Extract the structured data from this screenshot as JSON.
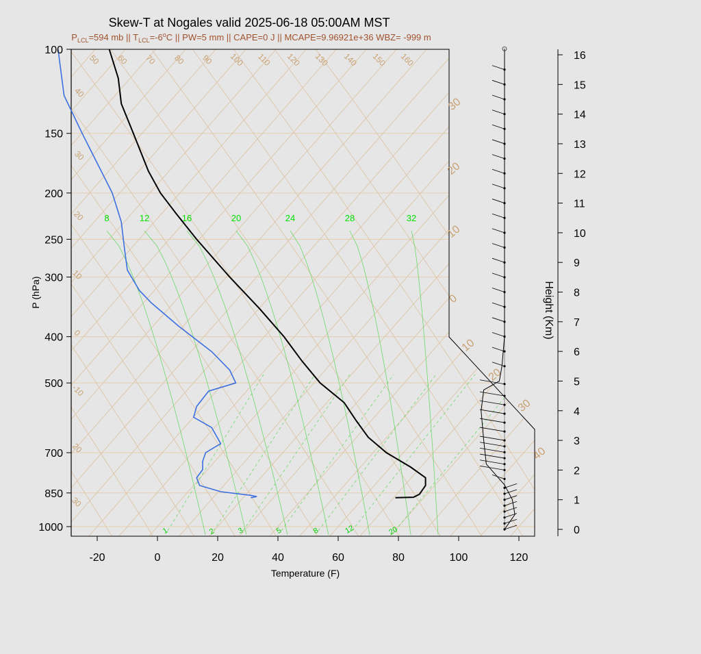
{
  "chart_data": {
    "type": "skew-t",
    "title": "Skew-T at Nogales valid 2025-06-18 05:00AM MST",
    "subtitle": {
      "lcl_p_prefix": "P",
      "lcl_p_sub": "LCL",
      "lcl_p_value": "=594 mb || T",
      "lcl_t_sub": "LCL",
      "lcl_t_value": "=-6",
      "deg": "o",
      "rest": "C || PW=5 mm || CAPE=0 J || MCAPE=9.96921e+36 WBZ= -999 m"
    },
    "xlabel": "Temperature (F)",
    "ylabel": "P (hPa)",
    "y2label": "Height (Km)",
    "x_ticks": [
      "-20",
      "0",
      "20",
      "40",
      "60",
      "80",
      "100",
      "120"
    ],
    "p_ticks": [
      "100",
      "150",
      "200",
      "250",
      "300",
      "400",
      "500",
      "700",
      "850",
      "1000"
    ],
    "height_ticks": [
      "0",
      "1",
      "2",
      "3",
      "4",
      "5",
      "6",
      "7",
      "8",
      "9",
      "10",
      "11",
      "12",
      "13",
      "14",
      "15",
      "16"
    ],
    "isotherm_labels_top": [
      "50",
      "60",
      "70",
      "80",
      "90",
      "100",
      "110",
      "120",
      "130",
      "140",
      "150",
      "160"
    ],
    "isotherm_labels_left": [
      "40",
      "30",
      "20",
      "10",
      "0",
      "-10",
      "20",
      "30"
    ],
    "adiabat_labels_right": [
      "30",
      "20",
      "10",
      "0",
      "10",
      "20",
      "30",
      "40"
    ],
    "mixing_ratio_labels_top": [
      "8",
      "12",
      "16",
      "20",
      "24",
      "28",
      "32"
    ],
    "mixing_ratio_labels_bottom": [
      "1",
      "2",
      "3",
      "5",
      "8",
      "12",
      "20"
    ],
    "temperature_profile": {
      "color": "#000000",
      "points": [
        {
          "p": 870,
          "t": 79
        },
        {
          "p": 868,
          "t": 85
        },
        {
          "p": 855,
          "t": 87
        },
        {
          "p": 820,
          "t": 89
        },
        {
          "p": 790,
          "t": 89
        },
        {
          "p": 750,
          "t": 84
        },
        {
          "p": 700,
          "t": 76
        },
        {
          "p": 650,
          "t": 70
        },
        {
          "p": 600,
          "t": 66
        },
        {
          "p": 550,
          "t": 62
        },
        {
          "p": 500,
          "t": 54
        },
        {
          "p": 450,
          "t": 48
        },
        {
          "p": 400,
          "t": 42
        },
        {
          "p": 350,
          "t": 34
        },
        {
          "p": 300,
          "t": 24
        },
        {
          "p": 250,
          "t": 13
        },
        {
          "p": 220,
          "t": 6
        },
        {
          "p": 200,
          "t": 1
        },
        {
          "p": 180,
          "t": -3
        },
        {
          "p": 150,
          "t": -8
        },
        {
          "p": 130,
          "t": -12
        },
        {
          "p": 115,
          "t": -13
        },
        {
          "p": 100,
          "t": -16
        }
      ]
    },
    "dewpoint_profile": {
      "color": "#3b6fe0",
      "points": [
        {
          "p": 870,
          "t": 31
        },
        {
          "p": 865,
          "t": 33
        },
        {
          "p": 860,
          "t": 31
        },
        {
          "p": 845,
          "t": 21
        },
        {
          "p": 820,
          "t": 14
        },
        {
          "p": 790,
          "t": 13
        },
        {
          "p": 760,
          "t": 15
        },
        {
          "p": 730,
          "t": 15
        },
        {
          "p": 700,
          "t": 16
        },
        {
          "p": 670,
          "t": 21
        },
        {
          "p": 620,
          "t": 18
        },
        {
          "p": 590,
          "t": 12
        },
        {
          "p": 560,
          "t": 13
        },
        {
          "p": 520,
          "t": 17
        },
        {
          "p": 500,
          "t": 26
        },
        {
          "p": 470,
          "t": 24
        },
        {
          "p": 430,
          "t": 18
        },
        {
          "p": 380,
          "t": 7
        },
        {
          "p": 340,
          "t": -2
        },
        {
          "p": 320,
          "t": -6
        },
        {
          "p": 290,
          "t": -10
        },
        {
          "p": 260,
          "t": -11
        },
        {
          "p": 230,
          "t": -12
        },
        {
          "p": 200,
          "t": -15
        },
        {
          "p": 150,
          "t": -25
        },
        {
          "p": 125,
          "t": -31
        },
        {
          "p": 100,
          "t": -33
        }
      ]
    },
    "wind_profile": {
      "description_note_hidden": false,
      "barb_heights_km": [
        0.0,
        0.2,
        0.4,
        0.6,
        0.8,
        1.0,
        1.2,
        1.4,
        1.7,
        2.0,
        2.2,
        2.4,
        2.6,
        2.8,
        3.0,
        3.3,
        3.6,
        3.9,
        4.2,
        4.5,
        4.9,
        5.5,
        6.0,
        6.5,
        7.0,
        7.5,
        8.0,
        8.5,
        9.0,
        9.5,
        10.0,
        10.5,
        11.0,
        11.5,
        12.0,
        12.5,
        13.0,
        13.5,
        14.0,
        14.5,
        15.0,
        15.5,
        16.2
      ],
      "speed_kt": [
        10,
        15,
        20,
        25,
        20,
        15,
        10,
        5,
        10,
        15,
        20,
        20,
        20,
        20,
        20,
        20,
        20,
        20,
        20,
        20,
        20,
        15,
        10,
        10,
        10,
        10,
        10,
        10,
        10,
        10,
        10,
        10,
        10,
        10,
        10,
        10,
        10,
        10,
        10,
        10,
        10,
        10,
        0
      ],
      "hodograph_x_points": [
        {
          "km": 0,
          "u": 0
        },
        {
          "km": 0.5,
          "u": 4
        },
        {
          "km": 1,
          "u": 3
        },
        {
          "km": 1.5,
          "u": 0
        },
        {
          "km": 2.2,
          "u": -7
        },
        {
          "km": 3,
          "u": -8
        },
        {
          "km": 4,
          "u": -9
        },
        {
          "km": 4.7,
          "u": -8
        },
        {
          "km": 5,
          "u": -2
        },
        {
          "km": 5.5,
          "u": -1
        },
        {
          "km": 6.5,
          "u": 0
        },
        {
          "km": 8,
          "u": 0
        },
        {
          "km": 10,
          "u": 0
        },
        {
          "km": 12,
          "u": 0
        },
        {
          "km": 14,
          "u": 0
        },
        {
          "km": 16.2,
          "u": 0
        }
      ]
    }
  }
}
